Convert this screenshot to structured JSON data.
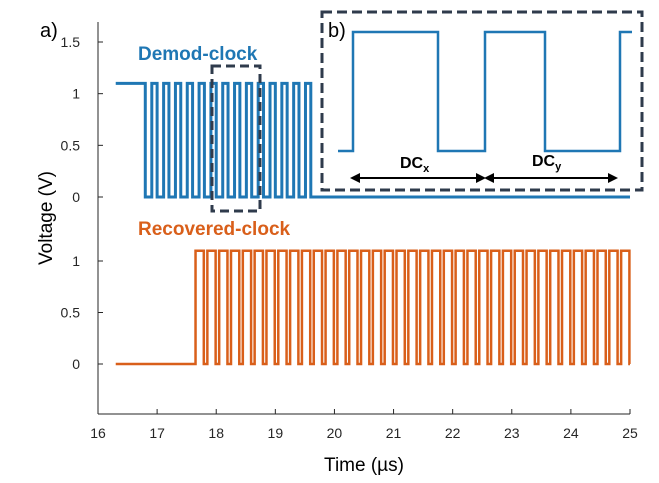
{
  "panel_a_label": "a)",
  "panel_b_label": "b)",
  "chart_data": {
    "type": "line",
    "xlabel": "Time (µs)",
    "ylabel": "Voltage (V)",
    "xlim": [
      16,
      25
    ],
    "x_ticks": [
      "16",
      "17",
      "18",
      "19",
      "20",
      "21",
      "22",
      "23",
      "24",
      "25"
    ],
    "top_y_ticks": [
      "0",
      "0.5",
      "1",
      "1.5"
    ],
    "bottom_y_ticks": [
      "0",
      "0.5",
      "1"
    ],
    "colors": {
      "demod": "#1f77b4",
      "recovered": "#d95f1a",
      "axis": "#262626",
      "frame": "#2f3b4c"
    },
    "series": [
      {
        "name": "Demod-clock",
        "color": "#1f77b4",
        "high": 1.1,
        "low": 0,
        "idle_level": 1.1,
        "start": 16.3,
        "pulse_train_start": 16.8,
        "pulse_period": 0.2,
        "pulse_duty": 0.55,
        "pulse_train_end": 19.6,
        "end": 25,
        "end_level": 0
      },
      {
        "name": "Recovered-clock",
        "color": "#d95f1a",
        "high": 1.1,
        "low": 0,
        "idle_level": 0,
        "start": 16.3,
        "rise": 17.65,
        "pulse_period": 0.2,
        "pulse_duty": 0.7,
        "end": 25
      }
    ],
    "inset": {
      "label": "b)",
      "description_labels": [
        {
          "text": "DC",
          "sub": "x"
        },
        {
          "text": "DC",
          "sub": "y"
        }
      ]
    }
  }
}
